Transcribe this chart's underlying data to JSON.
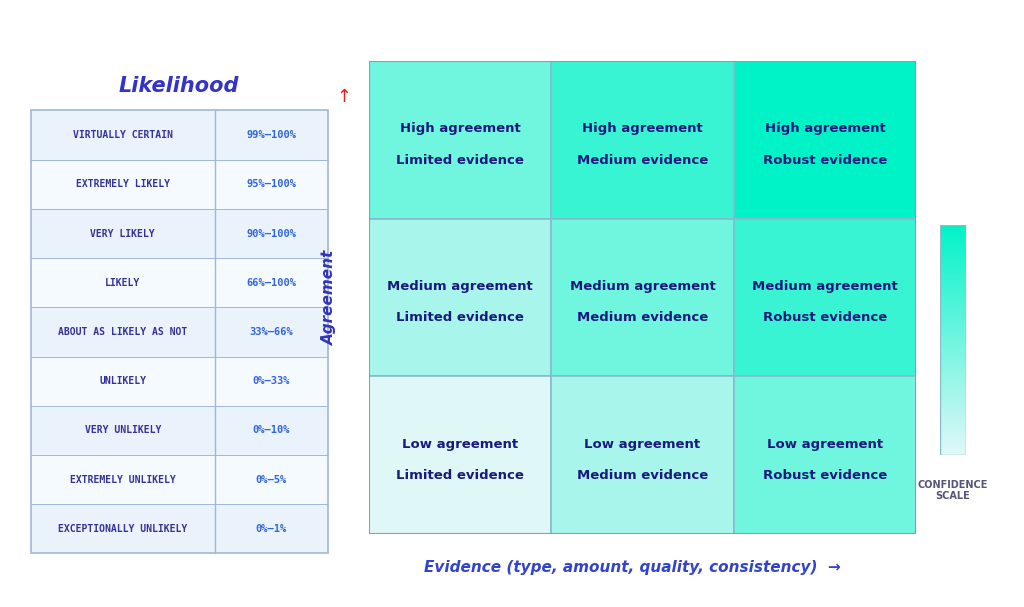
{
  "background_color": "#ffffff",
  "title_likelihood": "Likelihood",
  "title_color": "#3333cc",
  "title_fontsize": 15,
  "likelihood_rows": [
    [
      "VIRTUALLY CERTAIN",
      "99%–100%"
    ],
    [
      "EXTREMELY LIKELY",
      "95%–100%"
    ],
    [
      "VERY LIKELY",
      "90%–100%"
    ],
    [
      "LIKELY",
      "66%–100%"
    ],
    [
      "ABOUT AS LIKELY AS NOT",
      "33%–66%"
    ],
    [
      "UNLIKELY",
      "0%–33%"
    ],
    [
      "VERY UNLIKELY",
      "0%–10%"
    ],
    [
      "EXTREMELY UNLIKELY",
      "0%–5%"
    ],
    [
      "EXCEPTIONALLY UNLIKELY",
      "0%–1%"
    ]
  ],
  "table_bg_even": "#eaf2fb",
  "table_bg_odd": "#f5faff",
  "table_border": "#a0b8d8",
  "label_color": "#333399",
  "value_color": "#3366dd",
  "label_fontsize": 7.0,
  "value_fontsize": 7.5,
  "grid_cells": [
    {
      "row": 0,
      "col": 0,
      "line1": "High agreement",
      "line2": "Limited evidence"
    },
    {
      "row": 0,
      "col": 1,
      "line1": "High agreement",
      "line2": "Medium evidence"
    },
    {
      "row": 0,
      "col": 2,
      "line1": "High agreement",
      "line2": "Robust evidence"
    },
    {
      "row": 1,
      "col": 0,
      "line1": "Medium agreement",
      "line2": "Limited evidence"
    },
    {
      "row": 1,
      "col": 1,
      "line1": "Medium agreement",
      "line2": "Medium evidence"
    },
    {
      "row": 1,
      "col": 2,
      "line1": "Medium agreement",
      "line2": "Robust evidence"
    },
    {
      "row": 2,
      "col": 0,
      "line1": "Low agreement",
      "line2": "Limited evidence"
    },
    {
      "row": 2,
      "col": 1,
      "line1": "Low agreement",
      "line2": "Medium evidence"
    },
    {
      "row": 2,
      "col": 2,
      "line1": "Low agreement",
      "line2": "Robust evidence"
    }
  ],
  "cell_text_color": "#1a1a7e",
  "cell_text_fontsize": 9.5,
  "agreement_label_color": "#3333bb",
  "agreement_arrow_color": "#dd2222",
  "evidence_label_color": "#3344cc",
  "confidence_scale_color": "#555577",
  "confidence_scale_label": "CONFIDENCE\nSCALE",
  "grid_line_color": "#88bbcc",
  "grid_outer_color": "#66aacc",
  "color_low": [
    0.88,
    0.97,
    0.97
  ],
  "color_high": [
    0.0,
    0.95,
    0.78
  ]
}
